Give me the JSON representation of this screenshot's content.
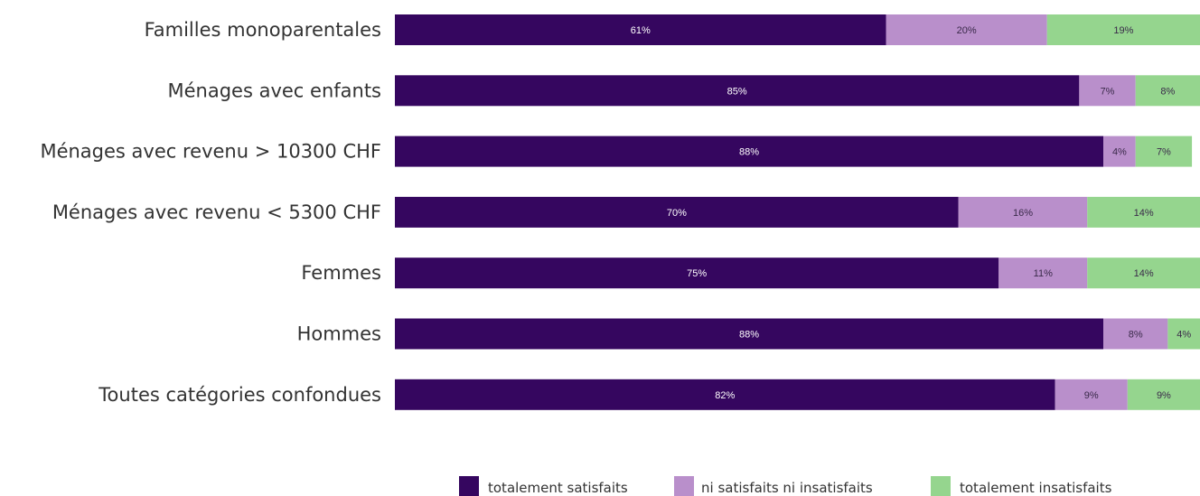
{
  "chart_data": {
    "type": "bar",
    "orientation": "horizontal",
    "stacked": true,
    "percent_stacked": true,
    "categories": [
      "Familles monoparentales",
      "Ménages avec enfants",
      "Ménages avec revenu > 10300 CHF",
      "Ménages avec revenu < 5300 CHF",
      "Femmes",
      "Hommes",
      "Toutes catégories confondues"
    ],
    "series": [
      {
        "name": "totalement satisfaits",
        "color": "#35065f",
        "values": [
          61,
          85,
          88,
          70,
          75,
          88,
          82
        ],
        "labels": [
          "61%",
          "85%",
          "88%",
          "70%",
          "75%",
          "88%",
          "82%"
        ]
      },
      {
        "name": "ni satisfaits ni insatisfaits",
        "color": "#b98fcb",
        "values": [
          20,
          7,
          4,
          16,
          11,
          8,
          9
        ],
        "labels": [
          "20%",
          "7%",
          "4%",
          "16%",
          "11%",
          "8%",
          "9%"
        ]
      },
      {
        "name": "totalement insatisfaits",
        "color": "#95d58e",
        "values": [
          19,
          8,
          7,
          14,
          14,
          4,
          9
        ],
        "labels": [
          "19%",
          "8%",
          "7%",
          "14%",
          "14%",
          "4%",
          "9%"
        ]
      }
    ],
    "xlim": [
      0,
      100
    ],
    "grid": false,
    "legend_position": "bottom-right"
  }
}
